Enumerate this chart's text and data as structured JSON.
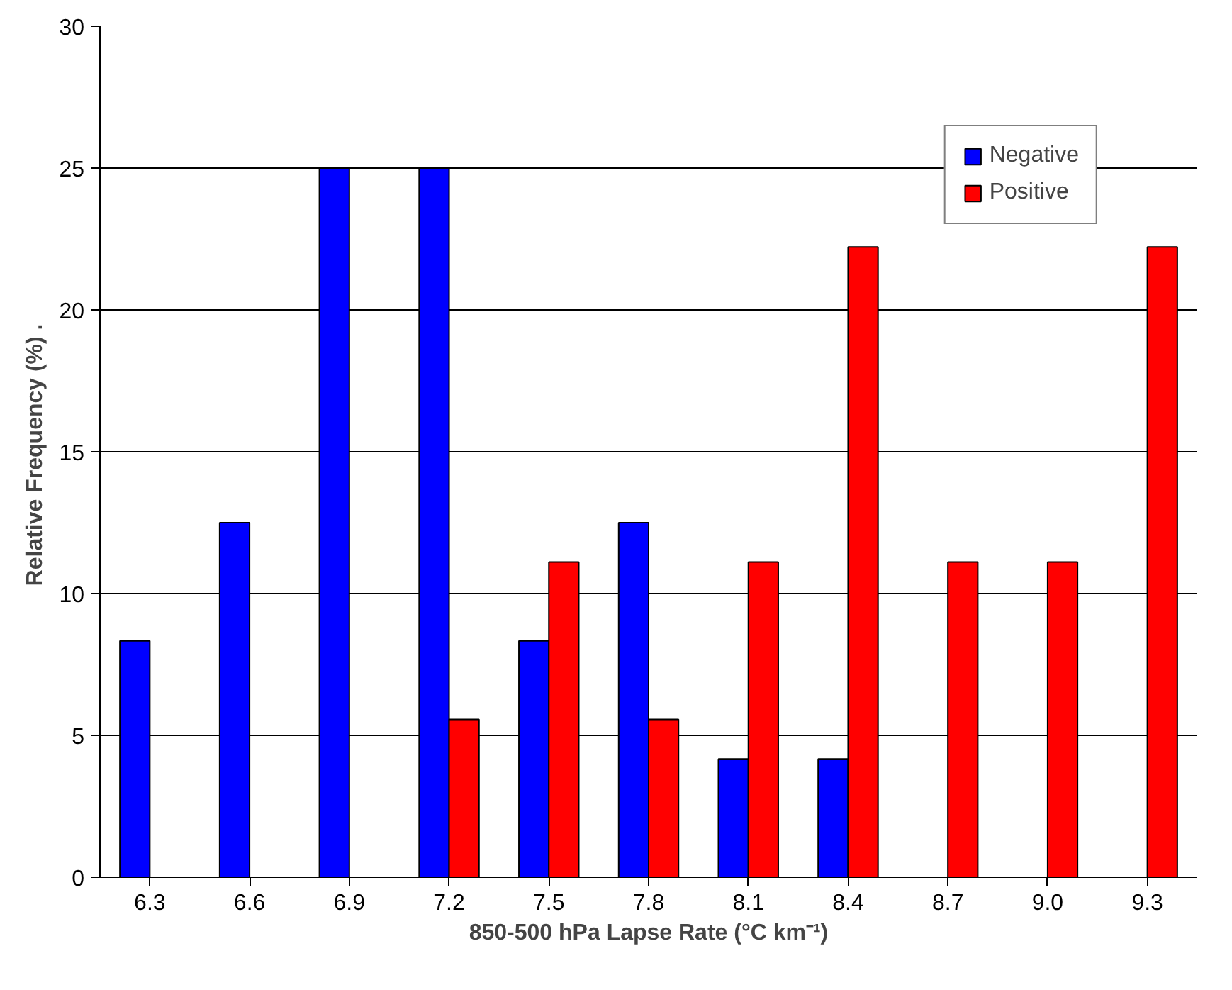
{
  "chart_data": {
    "type": "bar",
    "xlabel": "850-500 hPa Lapse Rate (°C km⁻¹)",
    "ylabel": "Relative Frequency (%)  .",
    "categories": [
      "6.3",
      "6.6",
      "6.9",
      "7.2",
      "7.5",
      "7.8",
      "8.1",
      "8.4",
      "8.7",
      "9.0",
      "9.3"
    ],
    "series": [
      {
        "name": "Negative",
        "color": "#0000ff",
        "values": [
          8.33,
          12.5,
          25,
          25,
          8.33,
          12.5,
          4.17,
          4.17,
          null,
          null,
          null
        ]
      },
      {
        "name": "Positive",
        "color": "#ff0000",
        "values": [
          null,
          null,
          null,
          5.56,
          11.11,
          5.56,
          11.11,
          22.22,
          11.11,
          11.11,
          22.22
        ]
      }
    ],
    "ylim": [
      0,
      30
    ],
    "yticks": [
      0,
      5,
      10,
      15,
      20,
      25,
      30
    ],
    "grid": "y",
    "legend": "top right"
  }
}
